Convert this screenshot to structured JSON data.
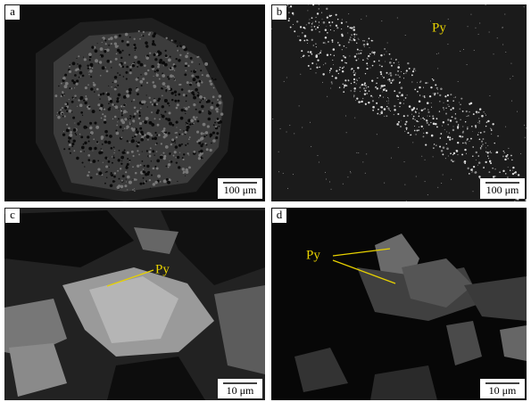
{
  "panels": [
    {
      "label": "a",
      "scale_bar": "100 μm"
    },
    {
      "label": "b",
      "scale_bar": "100 μm",
      "annotation": "Py"
    },
    {
      "label": "c",
      "scale_bar": "10 μm",
      "annotation": "Py"
    },
    {
      "label": "d",
      "scale_bar": "10 μm",
      "annotation": "Py"
    }
  ]
}
